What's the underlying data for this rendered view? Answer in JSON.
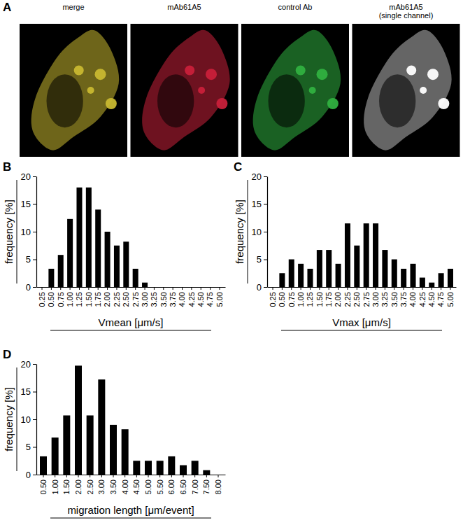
{
  "panel_a": {
    "label": "A",
    "images": [
      [
        "merge"
      ],
      [
        "mAb61A5"
      ],
      [
        "control Ab"
      ],
      [
        "mAb61A5",
        "(single channel)"
      ]
    ]
  },
  "chart_data": [
    {
      "type": "bar",
      "panel_label": "B",
      "x_label": "Vmean [μm/s]",
      "y_label": "frequency [%]",
      "categories": [
        "0.25",
        "0.50",
        "0.75",
        "1.00",
        "1.25",
        "1.50",
        "1.75",
        "2.00",
        "2.25",
        "2.50",
        "2.75",
        "3.00",
        "3.25",
        "3.50",
        "3.75",
        "4.00",
        "4.25",
        "4.50",
        "4.75",
        "5.00"
      ],
      "values": [
        0,
        3.3,
        5.8,
        12.3,
        18,
        18,
        14,
        10,
        7.5,
        8.2,
        3.3,
        0.8,
        0,
        0,
        0,
        0,
        0,
        0,
        0,
        0
      ],
      "color": "#000000",
      "ylim": [
        0,
        20
      ],
      "yticks": [
        0,
        5,
        10,
        15,
        20
      ]
    },
    {
      "type": "bar",
      "panel_label": "C",
      "x_label": "Vmax [μm/s]",
      "y_label": "frequency [%]",
      "categories": [
        "0.25",
        "0.50",
        "0.75",
        "1.00",
        "1.25",
        "1.50",
        "1.75",
        "2.00",
        "2.25",
        "2.50",
        "2.75",
        "3.00",
        "3.25",
        "3.50",
        "3.75",
        "4.00",
        "4.25",
        "4.50",
        "4.75",
        "5.00"
      ],
      "values": [
        0,
        2.5,
        5,
        4.2,
        3.3,
        6.7,
        6.7,
        4.2,
        11.5,
        7.5,
        11.5,
        11.5,
        6.7,
        5,
        3.3,
        4.2,
        1.7,
        0.8,
        2.5,
        3.3
      ],
      "color": "#000000",
      "ylim": [
        0,
        20
      ],
      "yticks": [
        0,
        5,
        10,
        15,
        20
      ]
    },
    {
      "type": "bar",
      "panel_label": "D",
      "x_label": "migration length [μm/event]",
      "y_label": "frequency [%]",
      "categories": [
        "0.50",
        "1.00",
        "1.50",
        "2.00",
        "2.50",
        "3.00",
        "3.50",
        "4.00",
        "4.50",
        "5.00",
        "5.50",
        "6.00",
        "6.50",
        "7.00",
        "7.50",
        "8.00"
      ],
      "values": [
        3.3,
        6.7,
        10.7,
        19.7,
        10.7,
        17.2,
        9,
        8.2,
        2.5,
        2.5,
        2.5,
        3.3,
        1.7,
        2.5,
        0.8,
        0
      ],
      "color": "#000000",
      "ylim": [
        0,
        20
      ],
      "yticks": [
        0,
        5,
        10,
        15,
        20
      ]
    }
  ]
}
